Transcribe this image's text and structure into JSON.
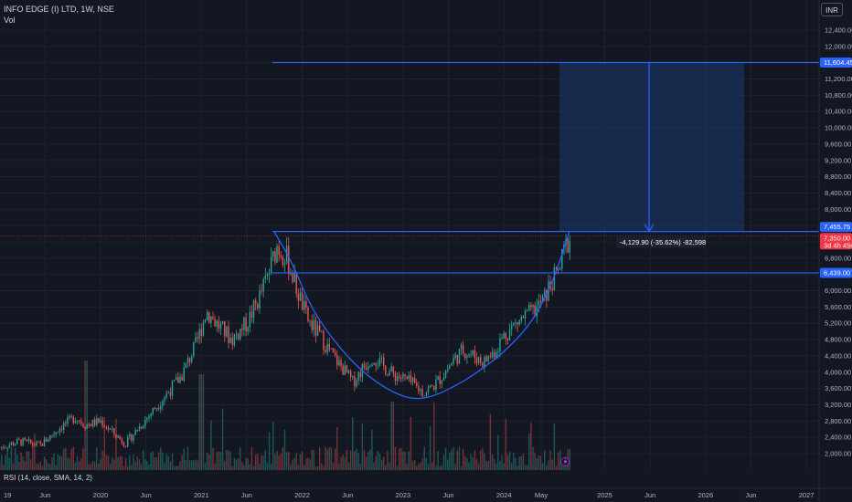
{
  "header": {
    "symbol": "INFO EDGE (I) LTD",
    "interval": "1W",
    "exchange": "NSE",
    "vol_label": "Vol",
    "currency": "INR",
    "rsi_label": "RSI (14, close, SMA, 14, 2)"
  },
  "colors": {
    "background": "#131722",
    "up": "#26a69a",
    "down": "#ef5350",
    "drawing": "#2962ff",
    "target_fill": "#1e3a70",
    "current_price": "#f23645",
    "grid": "#1e222d"
  },
  "chart_data": {
    "type": "candlestick",
    "title": "INFO EDGE (I) LTD, 1W, NSE",
    "ylabel": "INR",
    "ylim": [
      1850,
      12600
    ],
    "y_ticks": [
      "2,000.00",
      "2,400.00",
      "2,800.00",
      "3,200.00",
      "3,600.00",
      "4,000.00",
      "4,400.00",
      "4,800.00",
      "5,200.00",
      "5,600.00",
      "6,000.00",
      "6,400.00",
      "6,800.00",
      "7,200.00",
      "7,600.00",
      "8,000.00",
      "8,400.00",
      "8,800.00",
      "9,200.00",
      "9,600.00",
      "10,000.00",
      "10,400.00",
      "10,800.00",
      "11,200.00",
      "11,600.00",
      "12,000.00",
      "12,400.00"
    ],
    "x_ticks": [
      "19",
      "Jun",
      "2020",
      "Jun",
      "2021",
      "Jun",
      "2022",
      "Jun",
      "2023",
      "Jun",
      "2024",
      "May",
      "2025",
      "Jun",
      "2026",
      "Jun",
      "2027"
    ],
    "price_labels": {
      "target": "11,604.45",
      "breakout": "7,455.75",
      "current": "7,350.00",
      "countdown": "3d 4h 45m 53s",
      "support": "6,439.00"
    },
    "measure_label": "-4,129.90 (-35.62%) -82,598",
    "levels": {
      "target": 11604.45,
      "breakout": 7455.75,
      "current": 7350,
      "support": 6439
    },
    "cup_points": [
      [
        2021.72,
        7456
      ],
      [
        2021.9,
        6700
      ],
      [
        2022.1,
        5500
      ],
      [
        2022.4,
        4500
      ],
      [
        2022.65,
        3900
      ],
      [
        2022.9,
        3500
      ],
      [
        2023.1,
        3330
      ],
      [
        2023.3,
        3400
      ],
      [
        2023.55,
        3700
      ],
      [
        2023.8,
        4100
      ],
      [
        2024.05,
        4600
      ],
      [
        2024.3,
        5300
      ],
      [
        2024.5,
        6300
      ],
      [
        2024.65,
        7456
      ]
    ],
    "price_path": [
      [
        2019.0,
        2150
      ],
      [
        2019.2,
        2300
      ],
      [
        2019.4,
        2200
      ],
      [
        2019.6,
        2650
      ],
      [
        2019.75,
        2900
      ],
      [
        2019.85,
        2700
      ],
      [
        2020.0,
        2800
      ],
      [
        2020.15,
        2450
      ],
      [
        2020.25,
        2250
      ],
      [
        2020.4,
        2700
      ],
      [
        2020.6,
        3300
      ],
      [
        2020.8,
        3900
      ],
      [
        2020.95,
        4700
      ],
      [
        2021.05,
        5500
      ],
      [
        2021.15,
        5200
      ],
      [
        2021.3,
        4800
      ],
      [
        2021.45,
        5200
      ],
      [
        2021.55,
        5700
      ],
      [
        2021.65,
        6300
      ],
      [
        2021.75,
        7100
      ],
      [
        2021.85,
        6800
      ],
      [
        2021.95,
        6000
      ],
      [
        2022.05,
        5300
      ],
      [
        2022.2,
        4800
      ],
      [
        2022.3,
        4400
      ],
      [
        2022.4,
        4100
      ],
      [
        2022.5,
        3750
      ],
      [
        2022.6,
        4100
      ],
      [
        2022.7,
        4400
      ],
      [
        2022.8,
        4150
      ],
      [
        2022.9,
        3950
      ],
      [
        2023.0,
        3850
      ],
      [
        2023.1,
        3700
      ],
      [
        2023.2,
        3500
      ],
      [
        2023.3,
        3650
      ],
      [
        2023.4,
        3950
      ],
      [
        2023.5,
        4300
      ],
      [
        2023.6,
        4550
      ],
      [
        2023.7,
        4400
      ],
      [
        2023.8,
        4250
      ],
      [
        2023.9,
        4500
      ],
      [
        2024.0,
        4900
      ],
      [
        2024.1,
        5150
      ],
      [
        2024.2,
        5350
      ],
      [
        2024.3,
        5500
      ],
      [
        2024.4,
        5800
      ],
      [
        2024.45,
        6100
      ],
      [
        2024.55,
        6500
      ],
      [
        2024.6,
        7000
      ],
      [
        2024.66,
        7350
      ]
    ]
  }
}
